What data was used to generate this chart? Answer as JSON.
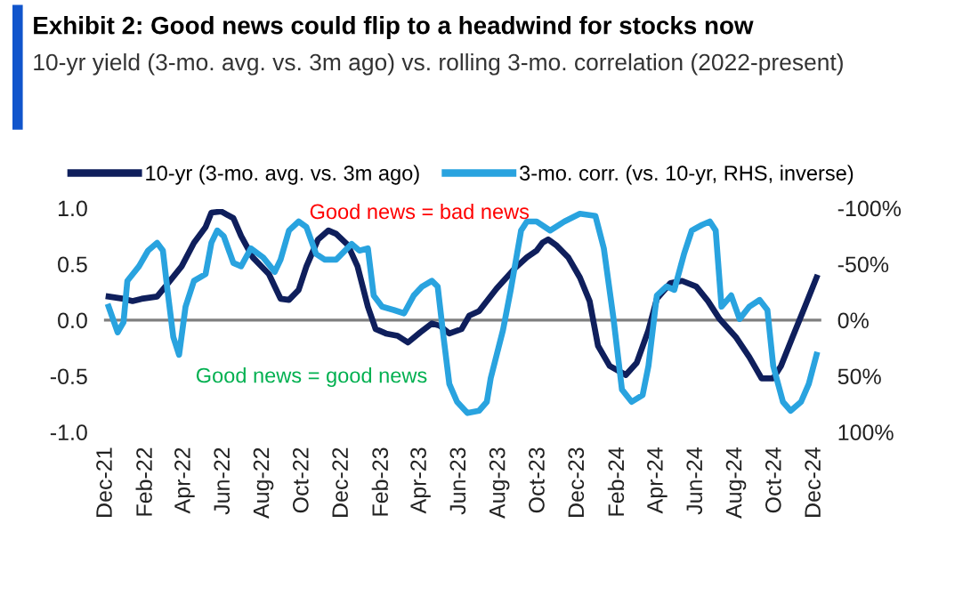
{
  "chart_data": {
    "type": "line",
    "title": "Exhibit 2: Good news could flip to a headwind for stocks now",
    "subtitle": "10-yr yield (3-mo. avg. vs. 3m ago) vs. rolling 3-mo. correlation (2022-present)",
    "series": [
      {
        "name": "10-yr (3-mo. avg. vs. 3m ago)",
        "color": "#0f1f5c",
        "x": [
          "2021-12-05",
          "2021-12-28",
          "2022-01-11",
          "2022-01-25",
          "2022-02-18",
          "2022-03-07",
          "2022-03-28",
          "2022-04-16",
          "2022-05-04",
          "2022-05-13",
          "2022-05-28",
          "2022-06-16",
          "2022-06-28",
          "2022-07-16",
          "2022-08-10",
          "2022-08-28",
          "2022-09-10",
          "2022-09-25",
          "2022-10-07",
          "2022-10-25",
          "2022-11-10",
          "2022-11-22",
          "2022-12-10",
          "2022-12-25",
          "2023-01-10",
          "2023-01-22",
          "2023-02-07",
          "2023-02-25",
          "2023-03-13",
          "2023-04-01",
          "2023-04-19",
          "2023-05-01",
          "2023-05-16",
          "2023-06-04",
          "2023-06-16",
          "2023-07-01",
          "2023-07-28",
          "2023-08-25",
          "2023-09-13",
          "2023-09-28",
          "2023-10-07",
          "2023-10-16",
          "2023-10-28",
          "2023-11-16",
          "2023-12-04",
          "2023-12-19",
          "2024-01-01",
          "2024-01-19",
          "2024-02-13",
          "2024-03-01",
          "2024-03-19",
          "2024-04-01",
          "2024-04-22",
          "2024-05-10",
          "2024-06-01",
          "2024-06-19",
          "2024-07-07",
          "2024-08-01",
          "2024-08-22",
          "2024-09-10",
          "2024-09-28",
          "2024-10-10",
          "2024-10-28",
          "2024-11-16",
          "2024-12-04"
        ],
        "values": [
          0.21,
          0.19,
          0.17,
          0.19,
          0.21,
          0.33,
          0.48,
          0.69,
          0.83,
          0.96,
          0.97,
          0.91,
          0.75,
          0.56,
          0.41,
          0.19,
          0.18,
          0.27,
          0.48,
          0.72,
          0.8,
          0.77,
          0.67,
          0.48,
          0.12,
          -0.08,
          -0.12,
          -0.14,
          -0.2,
          -0.11,
          -0.03,
          -0.05,
          -0.12,
          -0.08,
          0.04,
          0.08,
          0.28,
          0.46,
          0.56,
          0.62,
          0.69,
          0.72,
          0.67,
          0.56,
          0.38,
          0.17,
          -0.23,
          -0.41,
          -0.49,
          -0.38,
          -0.09,
          0.19,
          0.33,
          0.35,
          0.3,
          0.17,
          0.01,
          -0.15,
          -0.33,
          -0.52,
          -0.52,
          -0.41,
          -0.15,
          0.12,
          0.38
        ]
      },
      {
        "name": "3-mo. corr. (vs. 10-yr, RHS, inverse)",
        "color": "#29a3df",
        "axis": "y2",
        "x": [
          "2021-12-05",
          "2021-12-19",
          "2021-12-28",
          "2022-01-03",
          "2022-01-21",
          "2022-02-04",
          "2022-02-18",
          "2022-02-27",
          "2022-03-06",
          "2022-03-15",
          "2022-03-24",
          "2022-04-03",
          "2022-04-16",
          "2022-05-04",
          "2022-05-13",
          "2022-05-22",
          "2022-06-01",
          "2022-06-16",
          "2022-06-28",
          "2022-07-13",
          "2022-08-01",
          "2022-08-19",
          "2022-08-28",
          "2022-09-10",
          "2022-09-25",
          "2022-10-07",
          "2022-10-22",
          "2022-11-04",
          "2022-11-22",
          "2022-12-16",
          "2022-12-28",
          "2023-01-10",
          "2023-01-19",
          "2023-02-01",
          "2023-02-19",
          "2023-03-07",
          "2023-03-22",
          "2023-04-04",
          "2023-04-19",
          "2023-04-28",
          "2023-05-07",
          "2023-05-16",
          "2023-05-28",
          "2023-06-13",
          "2023-07-01",
          "2023-07-13",
          "2023-07-19",
          "2023-08-07",
          "2023-08-19",
          "2023-09-04",
          "2023-09-13",
          "2023-09-28",
          "2023-10-19",
          "2023-11-10",
          "2023-12-04",
          "2023-12-28",
          "2024-01-10",
          "2024-01-25",
          "2024-02-07",
          "2024-02-22",
          "2024-03-10",
          "2024-03-19",
          "2024-04-01",
          "2024-04-16",
          "2024-04-28",
          "2024-05-13",
          "2024-05-25",
          "2024-06-10",
          "2024-06-22",
          "2024-07-01",
          "2024-07-10",
          "2024-07-25",
          "2024-08-07",
          "2024-08-22",
          "2024-09-07",
          "2024-09-19",
          "2024-09-28",
          "2024-10-13",
          "2024-10-25",
          "2024-11-10",
          "2024-11-22",
          "2024-12-04"
        ],
        "values": [
          -12,
          11,
          2,
          -35,
          -48,
          -62,
          -69,
          -62,
          -27,
          15,
          31,
          -12,
          -35,
          -41,
          -69,
          -80,
          -75,
          -51,
          -48,
          -64,
          -56,
          -43,
          -54,
          -80,
          -88,
          -83,
          -59,
          -54,
          -54,
          -68,
          -62,
          -64,
          -22,
          -12,
          -9,
          -6,
          -22,
          -30,
          -35,
          -30,
          15,
          57,
          73,
          83,
          81,
          73,
          52,
          9,
          -27,
          -80,
          -88,
          -88,
          -80,
          -88,
          -95,
          -93,
          -64,
          -1,
          62,
          73,
          67,
          41,
          -22,
          -30,
          -27,
          -59,
          -80,
          -85,
          -88,
          -80,
          -12,
          -22,
          -1,
          -12,
          -18,
          -9,
          41,
          73,
          81,
          73,
          57,
          31
        ]
      }
    ],
    "xlim": [
      "2021-11-26",
      "2024-12-13"
    ],
    "xticks": [
      {
        "value": "2021-12-01",
        "label": "Dec-21"
      },
      {
        "value": "2022-02-01",
        "label": "Feb-22"
      },
      {
        "value": "2022-04-01",
        "label": "Apr-22"
      },
      {
        "value": "2022-06-01",
        "label": "Jun-22"
      },
      {
        "value": "2022-08-01",
        "label": "Aug-22"
      },
      {
        "value": "2022-10-01",
        "label": "Oct-22"
      },
      {
        "value": "2022-12-01",
        "label": "Dec-22"
      },
      {
        "value": "2023-02-01",
        "label": "Feb-23"
      },
      {
        "value": "2023-04-01",
        "label": "Apr-23"
      },
      {
        "value": "2023-06-01",
        "label": "Jun-23"
      },
      {
        "value": "2023-08-01",
        "label": "Aug-23"
      },
      {
        "value": "2023-10-01",
        "label": "Oct-23"
      },
      {
        "value": "2023-12-01",
        "label": "Dec-23"
      },
      {
        "value": "2024-02-01",
        "label": "Feb-24"
      },
      {
        "value": "2024-04-01",
        "label": "Apr-24"
      },
      {
        "value": "2024-06-01",
        "label": "Jun-24"
      },
      {
        "value": "2024-08-01",
        "label": "Aug-24"
      },
      {
        "value": "2024-10-01",
        "label": "Oct-24"
      },
      {
        "value": "2024-12-01",
        "label": "Dec-24"
      }
    ],
    "ylim": [
      -1,
      1
    ],
    "yticks": [
      {
        "value": -1,
        "label": "-1.0"
      },
      {
        "value": -0.5,
        "label": "-0.5"
      },
      {
        "value": 0,
        "label": "0.0"
      },
      {
        "value": 0.5,
        "label": "0.5"
      },
      {
        "value": 1,
        "label": "1.0"
      }
    ],
    "y2lim": [
      100,
      -100
    ],
    "y2ticks": [
      {
        "value": -100,
        "label": "-100%"
      },
      {
        "value": -50,
        "label": "-50%"
      },
      {
        "value": 0,
        "label": "0%"
      },
      {
        "value": 50,
        "label": "50%"
      },
      {
        "value": 100,
        "label": "100%"
      }
    ],
    "ref_lines": [
      {
        "axis": "y",
        "value": 0,
        "color": "#7f7f7f"
      }
    ],
    "annotations": [
      "Good news = bad news",
      "Good news = good news"
    ],
    "legend": "top",
    "grid": false,
    "line_style": "solid",
    "marker": "none"
  }
}
